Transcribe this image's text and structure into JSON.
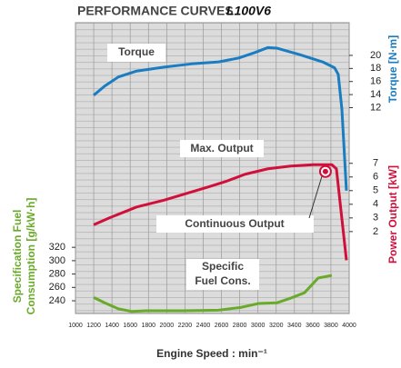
{
  "chart_data": {
    "type": "line",
    "title": "PERFORMANCE CURVES",
    "model": "L100V6",
    "x_label": "Engine Speed : min⁻¹",
    "xlim": [
      1000,
      4000
    ],
    "xticks": [
      1000,
      1200,
      1400,
      1600,
      1800,
      2000,
      2200,
      2400,
      2600,
      2800,
      3000,
      3200,
      3400,
      3600,
      3800,
      4000
    ],
    "y_label": [
      "Specification Fuel",
      "Consumption [g/kW·h]"
    ],
    "ylim": [
      221,
      656
    ],
    "yticks": [
      240,
      260,
      280,
      300,
      320
    ],
    "y2_label": "Torque [N·m]",
    "y2lim": [
      -19.5,
      25
    ],
    "y2ticks": [
      12,
      14,
      16,
      18,
      20
    ],
    "y3_label": "Power Output [kW]",
    "y3lim": [
      -4,
      17.3
    ],
    "y3ticks": [
      2,
      3,
      4,
      5,
      6,
      7
    ],
    "grid": true,
    "series": [
      {
        "name": "Torque",
        "color": "#1a7cc1",
        "axis": "y2",
        "x": [
          1200,
          1320,
          1470,
          1670,
          1970,
          2270,
          2570,
          2790,
          2960,
          3110,
          3210,
          3460,
          3710,
          3840,
          3880,
          3920,
          3970
        ],
        "values": [
          13.9,
          15.3,
          16.7,
          17.6,
          18.2,
          18.7,
          19.0,
          19.6,
          20.4,
          21.2,
          21.1,
          20.1,
          19.0,
          18.1,
          17.1,
          11.8,
          -0.7
        ]
      },
      {
        "name": "Max. Output",
        "color": "#d0103a",
        "axis": "y3",
        "x": [
          1200,
          1370,
          1670,
          1970,
          2270,
          2470,
          2660,
          2860,
          3110,
          3360,
          3610,
          3810,
          3860,
          3970
        ],
        "values": [
          2.5,
          3.0,
          3.8,
          4.3,
          4.9,
          5.3,
          5.7,
          6.2,
          6.6,
          6.8,
          6.9,
          6.9,
          6.6,
          -0.1
        ]
      },
      {
        "name": [
          "Specific",
          "Fuel Cons."
        ],
        "color": "#6aaa2a",
        "axis": "y",
        "x": [
          1200,
          1320,
          1470,
          1620,
          1770,
          2170,
          2570,
          2810,
          3010,
          3210,
          3360,
          3510,
          3660,
          3810
        ],
        "values": [
          245,
          237,
          228,
          224,
          225,
          225,
          226,
          230,
          236,
          237,
          244,
          252,
          274,
          278
        ]
      }
    ],
    "point": {
      "name": "Continuous Output",
      "color": "#d0103a",
      "axis": "y3",
      "x": 3740,
      "value": 6.4
    }
  }
}
